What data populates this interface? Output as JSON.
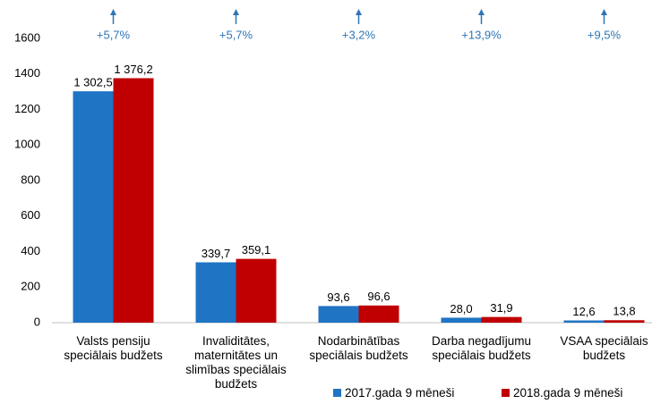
{
  "chart_data": {
    "type": "bar",
    "categories": [
      "Valsts pensiju\nspeciālais budžets",
      "Invaliditātes,\nmaternitātes un\nslimības speciālais\nbudžets",
      "Nodarbinātības\nspeciālais budžets",
      "Darba negadījumu\nspeciālais budžets",
      "VSAA speciālais\nbudžets"
    ],
    "series": [
      {
        "name": "2017.gada 9 mēneši",
        "color": "#1f74c4",
        "values": [
          1302.5,
          339.7,
          93.6,
          28.0,
          12.6
        ],
        "value_labels": [
          "1 302,5",
          "339,7",
          "93,6",
          "28,0",
          "12,6"
        ]
      },
      {
        "name": "2018.gada 9 mēneši",
        "color": "#c00000",
        "values": [
          1376.2,
          359.1,
          96.6,
          31.9,
          13.8
        ],
        "value_labels": [
          "1 376,2",
          "359,1",
          "96,6",
          "31,9",
          "13,8"
        ]
      }
    ],
    "annotations": [
      "+5,7%",
      "+5,7%",
      "+3,2%",
      "+13,9%",
      "+9,5%"
    ],
    "ylim": [
      0,
      1600
    ],
    "yticks": [
      0,
      200,
      400,
      600,
      800,
      1000,
      1200,
      1400,
      1600
    ],
    "grid": false,
    "legend": "bottom-right"
  }
}
